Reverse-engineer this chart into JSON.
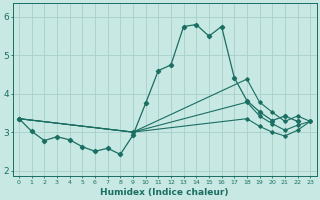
{
  "xlabel": "Humidex (Indice chaleur)",
  "bg_color": "#c8e8e4",
  "line_color": "#1a6e62",
  "grid_color": "#a8d0cc",
  "xlim": [
    -0.5,
    23.5
  ],
  "ylim": [
    1.85,
    6.35
  ],
  "yticks": [
    2,
    3,
    4,
    5,
    6
  ],
  "xtick_labels": [
    "0",
    "1",
    "2",
    "3",
    "4",
    "5",
    "6",
    "7",
    "8",
    "9",
    "10",
    "11",
    "12",
    "13",
    "14",
    "15",
    "16",
    "17",
    "18",
    "19",
    "20",
    "21",
    "22",
    "23"
  ],
  "line1_x": [
    0,
    1,
    2,
    3,
    4,
    5,
    6,
    7,
    8,
    9,
    10,
    11,
    12,
    13,
    14,
    15,
    16,
    17,
    18,
    19,
    20,
    21,
    22,
    23
  ],
  "line1_y": [
    3.35,
    3.02,
    2.78,
    2.88,
    2.8,
    2.62,
    2.5,
    2.58,
    2.42,
    2.92,
    3.75,
    4.6,
    4.75,
    5.75,
    5.8,
    5.5,
    5.75,
    4.42,
    3.82,
    3.53,
    3.3,
    3.42,
    3.28,
    null
  ],
  "line2_x": [
    0,
    9,
    18,
    19,
    20,
    21,
    22,
    23
  ],
  "line2_y": [
    3.35,
    3.0,
    4.38,
    3.78,
    3.52,
    3.28,
    3.42,
    3.28
  ],
  "line3_x": [
    0,
    9,
    18,
    19,
    20,
    21,
    22,
    23
  ],
  "line3_y": [
    3.35,
    3.0,
    3.78,
    3.42,
    3.22,
    3.05,
    3.18,
    3.28
  ],
  "line4_x": [
    0,
    9,
    18,
    19,
    20,
    21,
    22,
    23
  ],
  "line4_y": [
    3.35,
    3.0,
    3.35,
    3.15,
    3.0,
    2.9,
    3.05,
    3.28
  ],
  "lw1": 0.9,
  "lw2": 0.8,
  "ms1": 2.2,
  "ms2": 1.8
}
